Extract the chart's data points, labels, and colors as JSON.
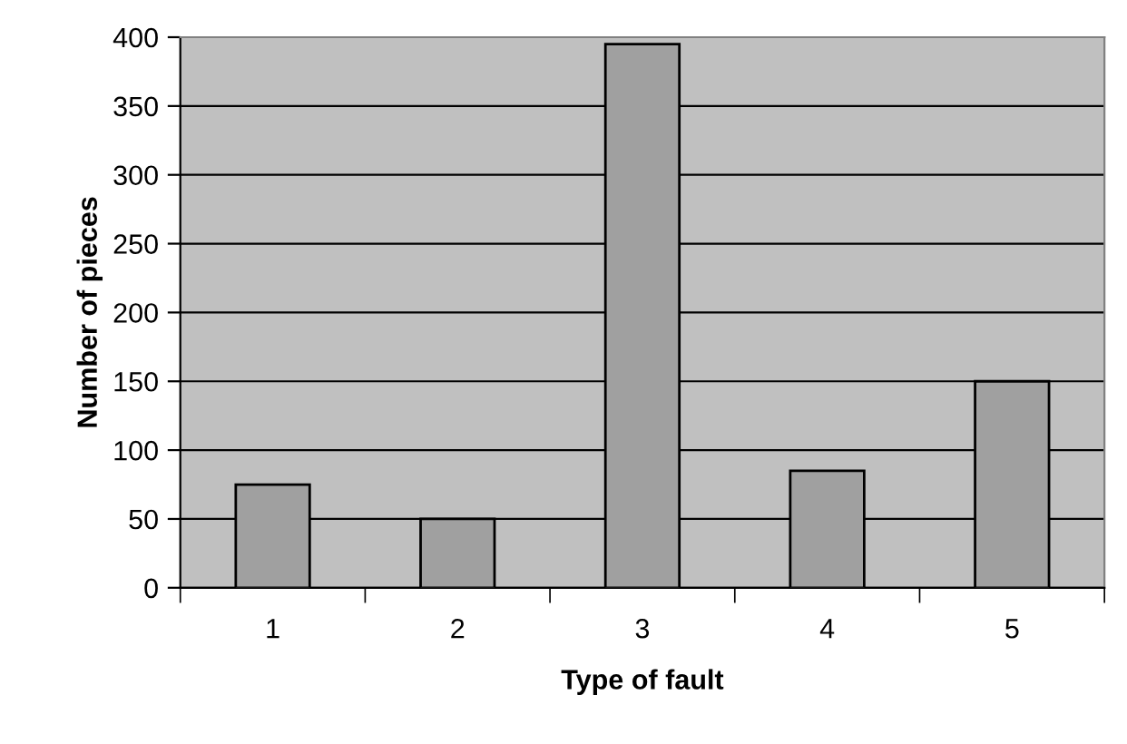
{
  "chart_data": {
    "type": "bar",
    "xlabel": "Type of fault",
    "ylabel": "Number of pieces",
    "categories": [
      "1",
      "2",
      "3",
      "4",
      "5"
    ],
    "values": [
      75,
      50,
      395,
      85,
      150
    ],
    "color": "#a0a0a0",
    "ylim": [
      0,
      400
    ],
    "yticks": [
      0,
      50,
      100,
      150,
      200,
      250,
      300,
      350,
      400
    ],
    "grid": "y"
  }
}
